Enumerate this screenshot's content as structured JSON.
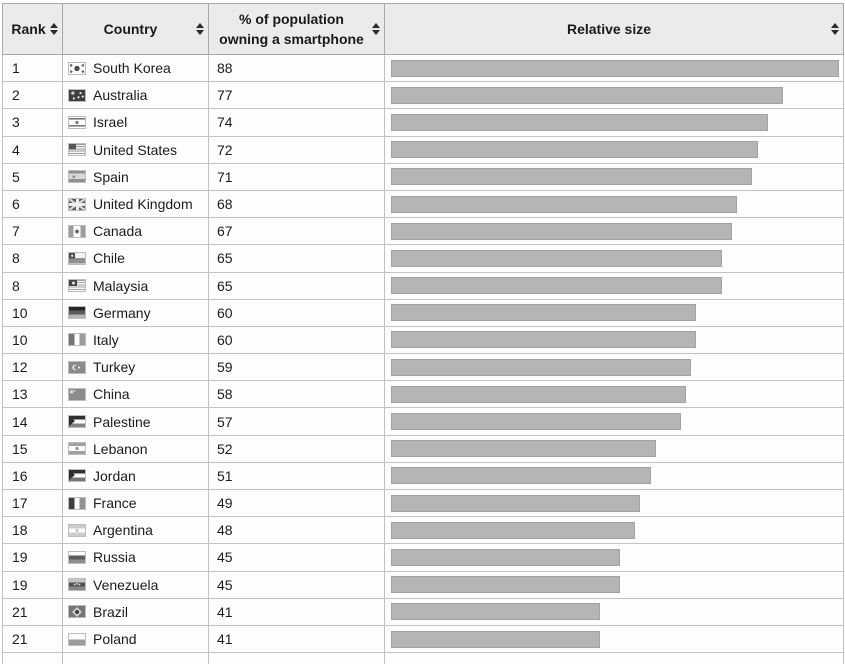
{
  "table": {
    "headers": [
      {
        "label": "Rank",
        "sortable": true
      },
      {
        "label": "Country",
        "sortable": true
      },
      {
        "label": "% of population owning a smartphone",
        "sortable": true
      },
      {
        "label": "Relative size",
        "sortable": true
      }
    ],
    "rows": [
      {
        "rank": "1",
        "country": "South Korea",
        "flag": "kr",
        "percent": 88
      },
      {
        "rank": "2",
        "country": "Australia",
        "flag": "au",
        "percent": 77
      },
      {
        "rank": "3",
        "country": "Israel",
        "flag": "il",
        "percent": 74
      },
      {
        "rank": "4",
        "country": "United States",
        "flag": "us",
        "percent": 72
      },
      {
        "rank": "5",
        "country": "Spain",
        "flag": "es",
        "percent": 71
      },
      {
        "rank": "6",
        "country": "United Kingdom",
        "flag": "gb",
        "percent": 68
      },
      {
        "rank": "7",
        "country": "Canada",
        "flag": "ca",
        "percent": 67
      },
      {
        "rank": "8",
        "country": "Chile",
        "flag": "cl",
        "percent": 65
      },
      {
        "rank": "8",
        "country": "Malaysia",
        "flag": "my",
        "percent": 65
      },
      {
        "rank": "10",
        "country": "Germany",
        "flag": "de",
        "percent": 60
      },
      {
        "rank": "10",
        "country": "Italy",
        "flag": "it",
        "percent": 60
      },
      {
        "rank": "12",
        "country": "Turkey",
        "flag": "tr",
        "percent": 59
      },
      {
        "rank": "13",
        "country": "China",
        "flag": "cn",
        "percent": 58
      },
      {
        "rank": "14",
        "country": "Palestine",
        "flag": "ps",
        "percent": 57
      },
      {
        "rank": "15",
        "country": "Lebanon",
        "flag": "lb",
        "percent": 52
      },
      {
        "rank": "16",
        "country": "Jordan",
        "flag": "jo",
        "percent": 51
      },
      {
        "rank": "17",
        "country": "France",
        "flag": "fr",
        "percent": 49
      },
      {
        "rank": "18",
        "country": "Argentina",
        "flag": "ar",
        "percent": 48
      },
      {
        "rank": "19",
        "country": "Russia",
        "flag": "ru",
        "percent": 45
      },
      {
        "rank": "19",
        "country": "Venezuela",
        "flag": "ve",
        "percent": 45
      },
      {
        "rank": "21",
        "country": "Brazil",
        "flag": "br",
        "percent": 41
      },
      {
        "rank": "21",
        "country": "Poland",
        "flag": "pl",
        "percent": 41
      }
    ],
    "bar": {
      "fill_color": "#b5b5b5",
      "border_color": "#a2a2a2"
    },
    "header_bg": "#ebebeb",
    "sort_icon": "up-down-triangles-icon"
  },
  "chart_data": {
    "type": "bar",
    "orientation": "horizontal",
    "title": "% of population owning a smartphone",
    "categories": [
      "South Korea",
      "Australia",
      "Israel",
      "United States",
      "Spain",
      "United Kingdom",
      "Canada",
      "Chile",
      "Malaysia",
      "Germany",
      "Italy",
      "Turkey",
      "China",
      "Palestine",
      "Lebanon",
      "Jordan",
      "France",
      "Argentina",
      "Russia",
      "Venezuela",
      "Brazil",
      "Poland"
    ],
    "values": [
      88,
      77,
      74,
      72,
      71,
      68,
      67,
      65,
      65,
      60,
      60,
      59,
      58,
      57,
      52,
      51,
      49,
      48,
      45,
      45,
      41,
      41
    ],
    "ranks": [
      1,
      2,
      3,
      4,
      5,
      6,
      7,
      8,
      8,
      10,
      10,
      12,
      13,
      14,
      15,
      16,
      17,
      18,
      19,
      19,
      21,
      21
    ],
    "xlabel": "Relative size",
    "xlim": [
      0,
      88
    ],
    "bar_color": "#b5b5b5",
    "legend": false,
    "grid": false
  }
}
